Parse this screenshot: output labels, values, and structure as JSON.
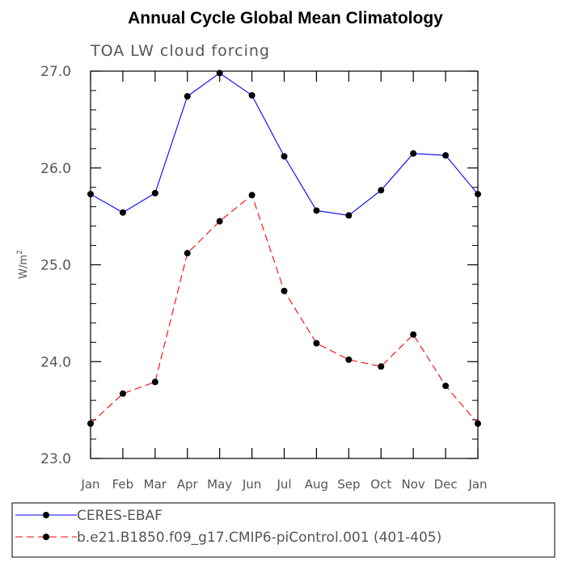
{
  "chart_data": {
    "type": "line",
    "title": "Annual Cycle Global Mean Climatology",
    "subtitle": "TOA LW cloud forcing",
    "ylabel_base": "W/m",
    "ylabel_sup": "2",
    "ylim": [
      23.0,
      27.0
    ],
    "yticks": [
      23.0,
      24.0,
      25.0,
      26.0,
      27.0
    ],
    "ytick_labels": [
      "23.0",
      "24.0",
      "25.0",
      "26.0",
      "27.0"
    ],
    "categories": [
      "Jan",
      "Feb",
      "Mar",
      "Apr",
      "May",
      "Jun",
      "Jul",
      "Aug",
      "Sep",
      "Oct",
      "Nov",
      "Dec",
      "Jan"
    ],
    "series": [
      {
        "name": "CERES-EBAF",
        "color": "#0000ff",
        "dash": "solid",
        "values": [
          25.73,
          25.54,
          25.74,
          26.74,
          26.98,
          26.75,
          26.12,
          25.56,
          25.51,
          25.77,
          26.15,
          26.13,
          25.73
        ]
      },
      {
        "name": "b.e21.B1850.f09_g17.CMIP6-piControl.001 (401-405)",
        "color": "#ff0000",
        "dash": "dashed",
        "values": [
          23.36,
          23.67,
          23.79,
          25.12,
          25.45,
          25.72,
          24.73,
          24.19,
          24.02,
          23.95,
          24.28,
          23.75,
          23.36
        ]
      }
    ]
  }
}
